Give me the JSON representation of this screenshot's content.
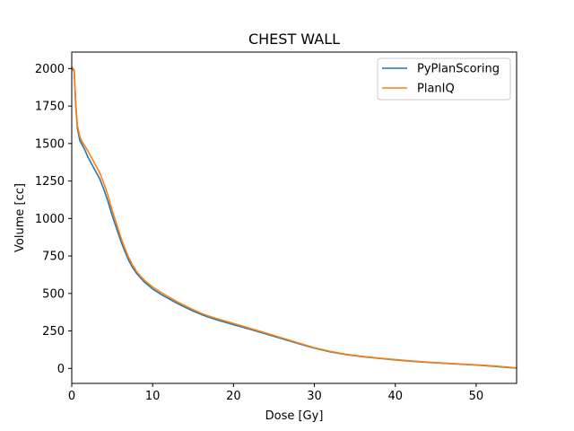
{
  "chart_data": {
    "type": "line",
    "title": "CHEST WALL",
    "xlabel": "Dose [Gy]",
    "ylabel": "Volume [cc]",
    "xlim": [
      0,
      55
    ],
    "ylim": [
      -100,
      2110
    ],
    "xticks": [
      0,
      10,
      20,
      30,
      40,
      50
    ],
    "yticks": [
      0,
      250,
      500,
      750,
      1000,
      1250,
      1500,
      1750,
      2000
    ],
    "grid": false,
    "legend_position": "top-right",
    "series": [
      {
        "name": "PyPlanScoring",
        "color": "#1f77b4",
        "x": [
          0,
          0.3,
          0.5,
          0.7,
          1.0,
          1.3,
          1.6,
          2.0,
          2.5,
          3.0,
          3.5,
          4.0,
          4.5,
          5.0,
          5.5,
          6.0,
          6.5,
          7.0,
          7.5,
          8.0,
          8.5,
          9.0,
          10.0,
          11.0,
          12.0,
          13.0,
          14.0,
          15.0,
          16.0,
          17.0,
          18.0,
          20.0,
          22.0,
          24.0,
          26.0,
          28.0,
          30.0,
          32.0,
          34.0,
          36.0,
          38.0,
          40.0,
          42.0,
          44.0,
          46.0,
          48.0,
          50.0,
          52.0,
          54.0,
          55.0
        ],
        "y": [
          2010,
          1980,
          1750,
          1600,
          1520,
          1490,
          1460,
          1410,
          1360,
          1310,
          1260,
          1190,
          1110,
          1020,
          940,
          860,
          790,
          725,
          675,
          635,
          605,
          575,
          530,
          495,
          465,
          435,
          408,
          383,
          360,
          340,
          323,
          292,
          262,
          230,
          198,
          166,
          135,
          110,
          92,
          78,
          67,
          57,
          48,
          40,
          34,
          28,
          22,
          15,
          6,
          2
        ]
      },
      {
        "name": "PlanIQ",
        "color": "#ff7f0e",
        "x": [
          0,
          0.3,
          0.5,
          0.7,
          1.0,
          1.3,
          1.6,
          2.0,
          2.5,
          3.0,
          3.5,
          4.0,
          4.5,
          5.0,
          5.5,
          6.0,
          6.5,
          7.0,
          7.5,
          8.0,
          8.5,
          9.0,
          10.0,
          11.0,
          12.0,
          13.0,
          14.0,
          15.0,
          16.0,
          17.0,
          18.0,
          20.0,
          22.0,
          24.0,
          26.0,
          28.0,
          30.0,
          32.0,
          34.0,
          36.0,
          38.0,
          40.0,
          42.0,
          44.0,
          46.0,
          48.0,
          50.0,
          52.0,
          54.0,
          55.0
        ],
        "y": [
          2010,
          1990,
          1770,
          1620,
          1545,
          1510,
          1485,
          1450,
          1400,
          1350,
          1300,
          1230,
          1150,
          1055,
          970,
          885,
          810,
          745,
          690,
          648,
          615,
          587,
          543,
          508,
          477,
          446,
          418,
          392,
          368,
          348,
          331,
          300,
          268,
          236,
          203,
          170,
          138,
          113,
          94,
          80,
          69,
          59,
          50,
          42,
          36,
          30,
          24,
          17,
          8,
          3
        ]
      }
    ]
  }
}
